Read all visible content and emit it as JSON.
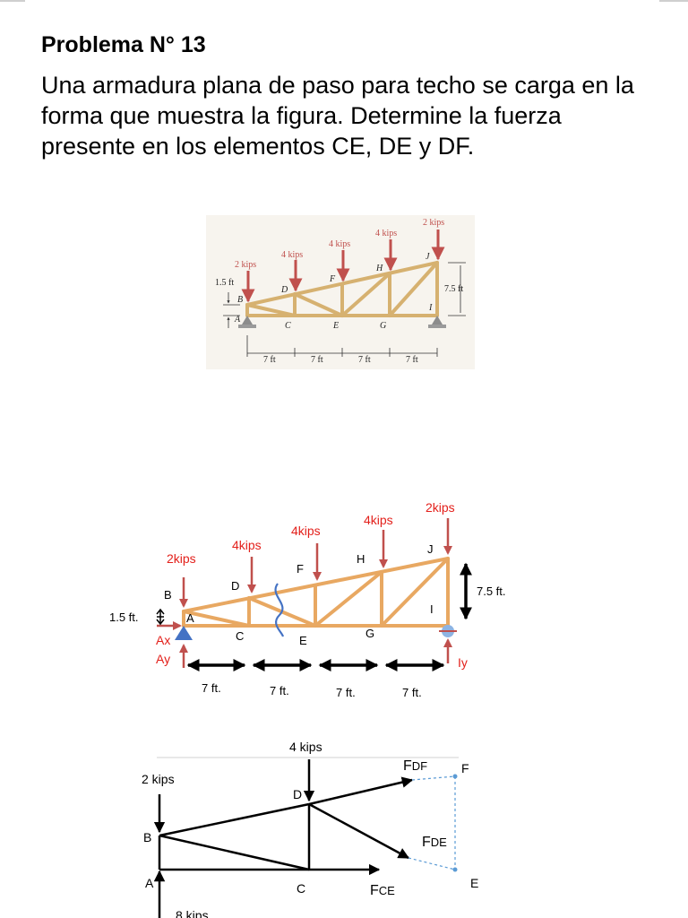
{
  "title": "Problema N° 13",
  "statement": "Una armadura plana de paso para techo se carga en la forma que muestra la figura. Determine la fuerza presente en los elementos CE, DE y DF.",
  "colors": {
    "member": "#E8A862",
    "photo_member": "#D6B170",
    "load_arrow": "#C0504D",
    "load_text": "#E3201B",
    "support": "#4472C4",
    "dashed": "#5B9BD5"
  },
  "photo_figure": {
    "loads": [
      "2 kips",
      "4 kips",
      "4 kips",
      "4 kips",
      "2 kips"
    ],
    "joints": [
      "A",
      "B",
      "C",
      "D",
      "E",
      "F",
      "G",
      "H",
      "I",
      "J"
    ],
    "left_height": "1.5 ft",
    "right_height": "7.5 ft",
    "spans": [
      "7 ft",
      "7 ft",
      "7 ft",
      "7 ft"
    ]
  },
  "truss_diagram": {
    "loads": [
      "2kips",
      "4kips",
      "4kips",
      "4kips",
      "2kips"
    ],
    "joints": [
      "A",
      "B",
      "C",
      "D",
      "E",
      "F",
      "G",
      "H",
      "I",
      "J"
    ],
    "left_height": "1.5 ft.",
    "right_height": "7.5 ft.",
    "reactions": [
      "Ax",
      "Ay",
      "Iy"
    ],
    "spans": [
      "7 ft.",
      "7 ft.",
      "7 ft.",
      "7 ft."
    ]
  },
  "free_body": {
    "loads": [
      "2 kips",
      "4 kips",
      "8 kips"
    ],
    "joints": [
      "A",
      "B",
      "C",
      "D",
      "E",
      "F"
    ],
    "forces": [
      {
        "main": "F",
        "sub": "DF"
      },
      {
        "main": "F",
        "sub": "DE"
      },
      {
        "main": "F",
        "sub": "CE"
      }
    ]
  }
}
